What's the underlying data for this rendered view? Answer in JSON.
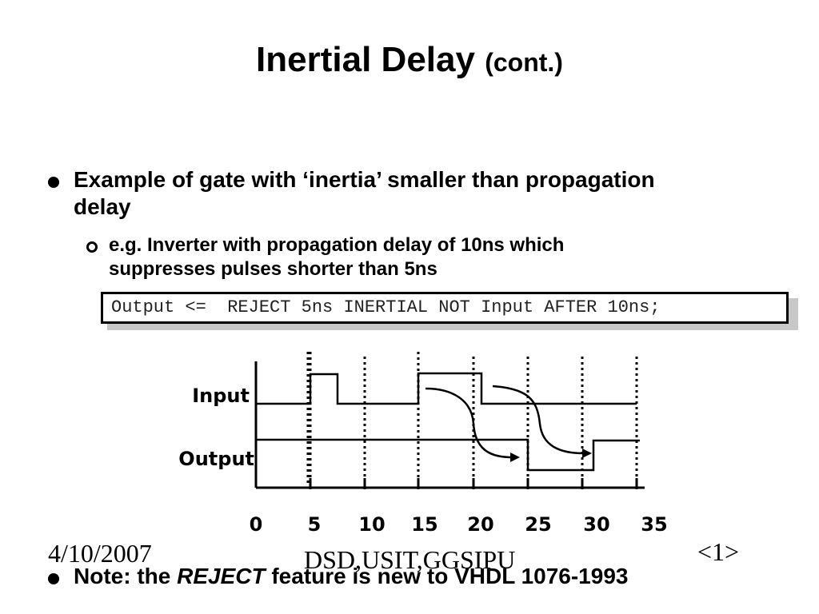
{
  "slide": {
    "title_main": "Inertial Delay",
    "title_sub": "(cont.)",
    "bullet1": "Example of gate with ‘inertia’ smaller than propagation delay",
    "sub_bullet1": "e.g. Inverter with propagation delay of 10ns which suppresses pulses shorter than 5ns",
    "code": "Output <=  REJECT 5ns INERTIAL NOT Input AFTER 10ns;",
    "note_prefix": "Note: the ",
    "note_keyword": "REJECT",
    "note_suffix": " feature is new to VHDL 1076-1993"
  },
  "timing_diagram": {
    "signals": [
      "Input",
      "Output"
    ],
    "time_ticks": [
      "0",
      "5",
      "10",
      "15",
      "20",
      "25",
      "30",
      "35"
    ]
  },
  "footer": {
    "date": "4/10/2007",
    "center": "DSD,USIT,GGSIPU",
    "page": "<1>"
  }
}
